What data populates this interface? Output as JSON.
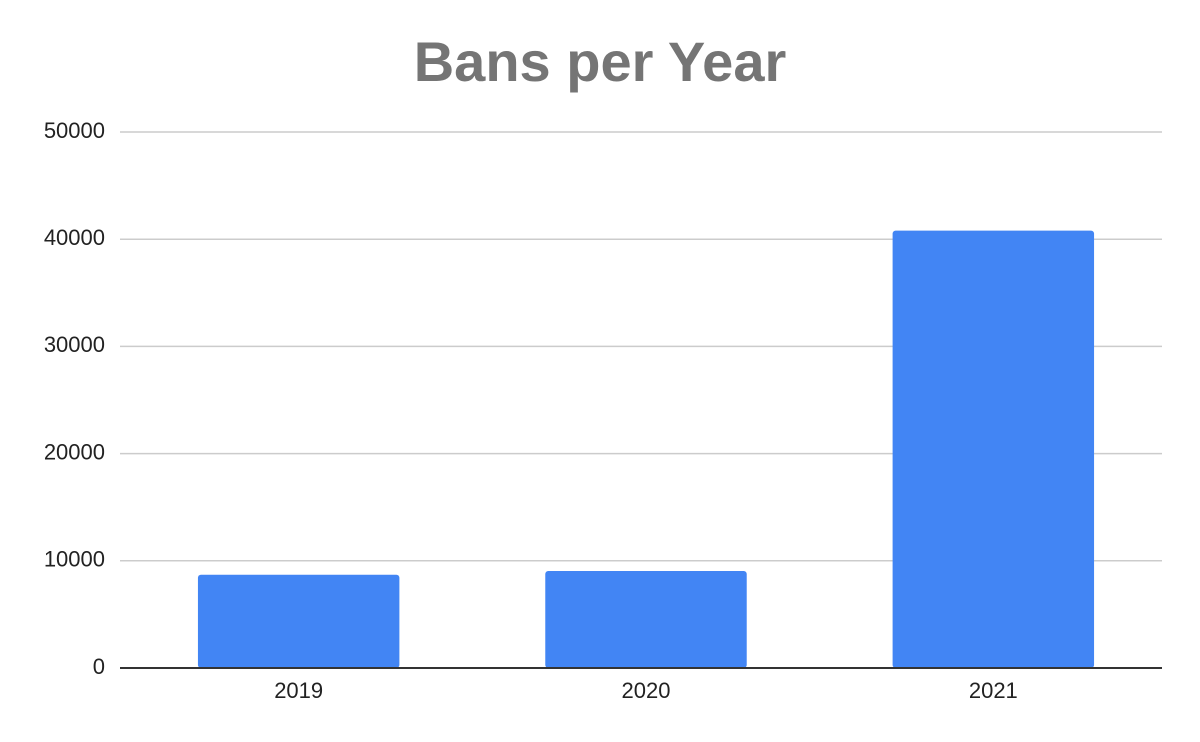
{
  "chart_data": {
    "type": "bar",
    "title": "Bans per Year",
    "categories": [
      "2019",
      "2020",
      "2021"
    ],
    "values": [
      8700,
      9050,
      40800
    ],
    "color": "#4285f4",
    "ylim": [
      0,
      50000
    ],
    "yticks": [
      0,
      10000,
      20000,
      30000,
      40000,
      50000
    ],
    "grid": true
  }
}
